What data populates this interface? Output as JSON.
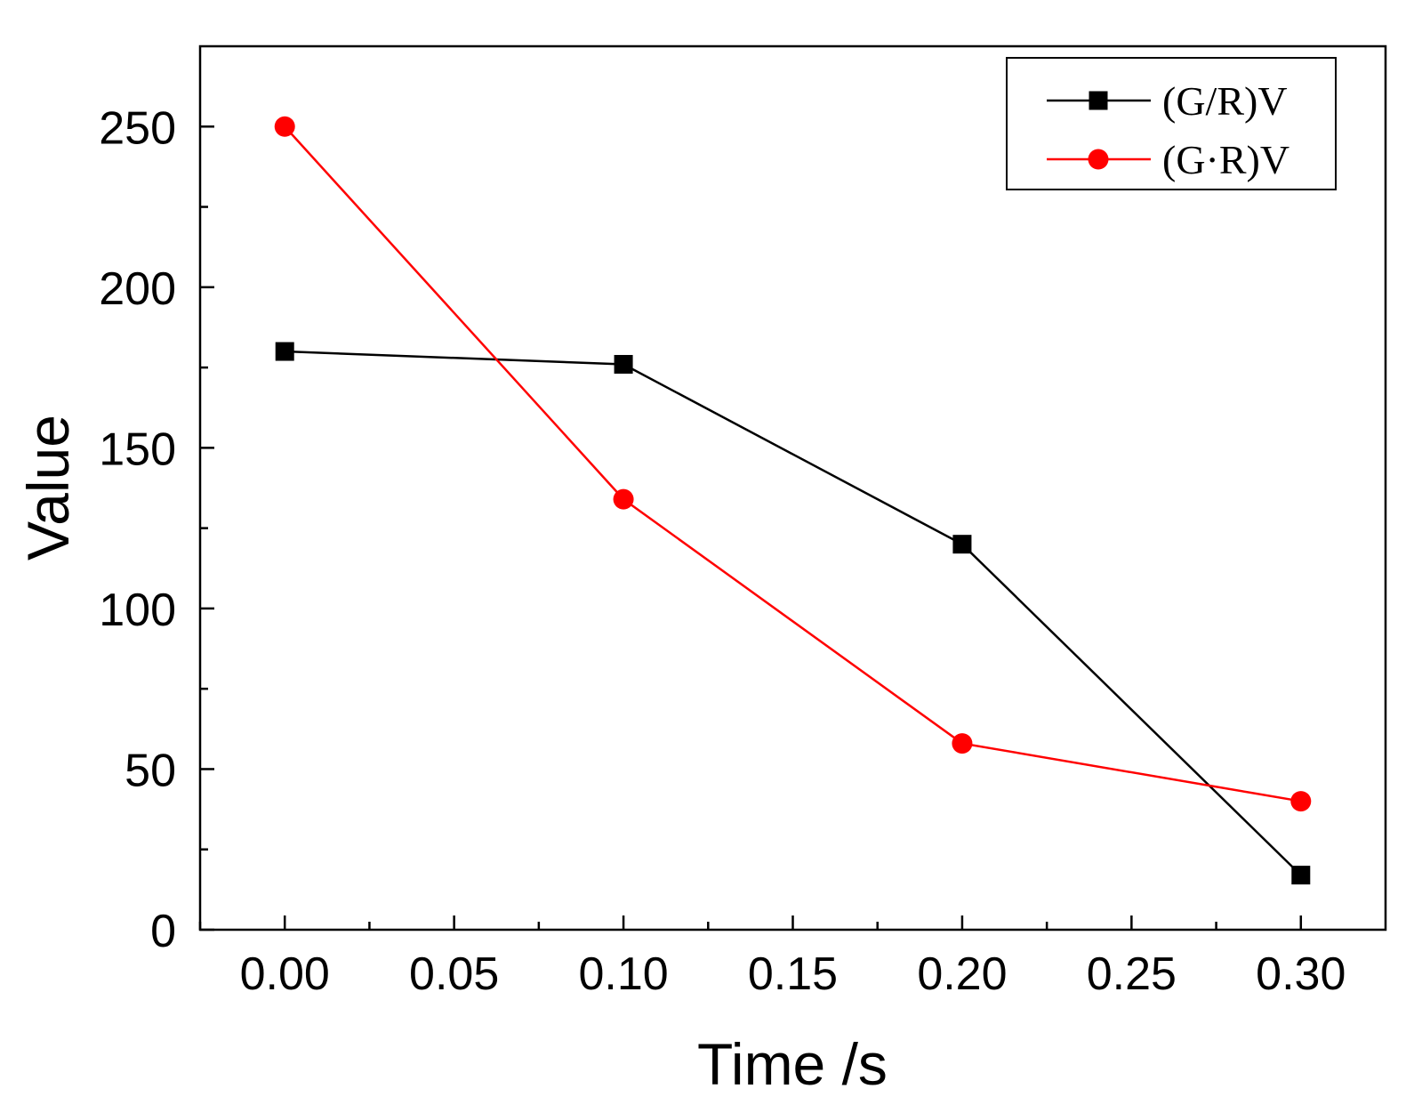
{
  "chart_data": {
    "type": "line",
    "title": "",
    "xlabel": "Time /s",
    "ylabel": "Value",
    "x": [
      0.0,
      0.1,
      0.2,
      0.3
    ],
    "xlim": [
      -0.025,
      0.325
    ],
    "ylim": [
      0,
      275
    ],
    "xticks": [
      0.0,
      0.05,
      0.1,
      0.15,
      0.2,
      0.25,
      0.3
    ],
    "xtick_labels": [
      "0.00",
      "0.05",
      "0.10",
      "0.15",
      "0.20",
      "0.25",
      "0.30"
    ],
    "xminor_ticks": [
      -0.025,
      0.025,
      0.075,
      0.125,
      0.175,
      0.225,
      0.275
    ],
    "yticks": [
      0,
      50,
      100,
      150,
      200,
      250
    ],
    "ytick_labels": [
      "0",
      "50",
      "100",
      "150",
      "200",
      "250"
    ],
    "yminor_ticks": [
      25,
      75,
      125,
      175,
      225
    ],
    "grid": false,
    "legend_position": "top-right",
    "series": [
      {
        "name": "(G/R)V",
        "color": "#000000",
        "marker": "square",
        "values": [
          180,
          176,
          120,
          17
        ]
      },
      {
        "name": "(G·R)V",
        "color": "#ff0000",
        "marker": "circle",
        "values": [
          250,
          134,
          58,
          40
        ]
      }
    ]
  }
}
